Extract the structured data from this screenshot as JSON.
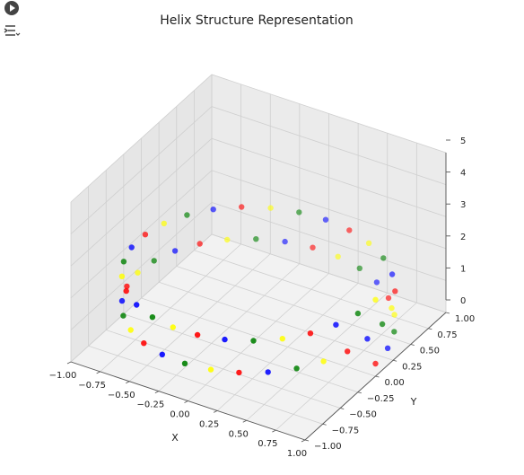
{
  "toolbar": {
    "run_icon": "play-circle-icon",
    "output_icon": "output-toggle-icon"
  },
  "chart_data": {
    "type": "scatter3d",
    "title": "Helix Structure Representation",
    "xlabel": "X",
    "ylabel": "Y",
    "zlabel": "",
    "xlim": [
      -1.0,
      1.0
    ],
    "ylim": [
      -1.0,
      1.0
    ],
    "zlim": [
      0,
      5
    ],
    "xticks": [
      "−1.00",
      "−0.75",
      "−0.50",
      "−0.25",
      "0.00",
      "0.25",
      "0.50",
      "0.75",
      "1.00"
    ],
    "yticks": [
      "−1.00",
      "−0.75",
      "−0.50",
      "−0.25",
      "0.00",
      "0.25",
      "0.50",
      "0.75",
      "1.00"
    ],
    "zticks": [
      "0",
      "1",
      "2",
      "3",
      "4",
      "5"
    ],
    "grid": true,
    "pattern": "cos(t), sin(t), t/(2*pi) for t in 0..~4pi, 60 points, colour cycle",
    "points": 60,
    "t_max": 12.566,
    "colors": [
      "#ff0000",
      "#0000ff",
      "#008000",
      "#ffff00"
    ],
    "marker_alpha": 0.7
  }
}
